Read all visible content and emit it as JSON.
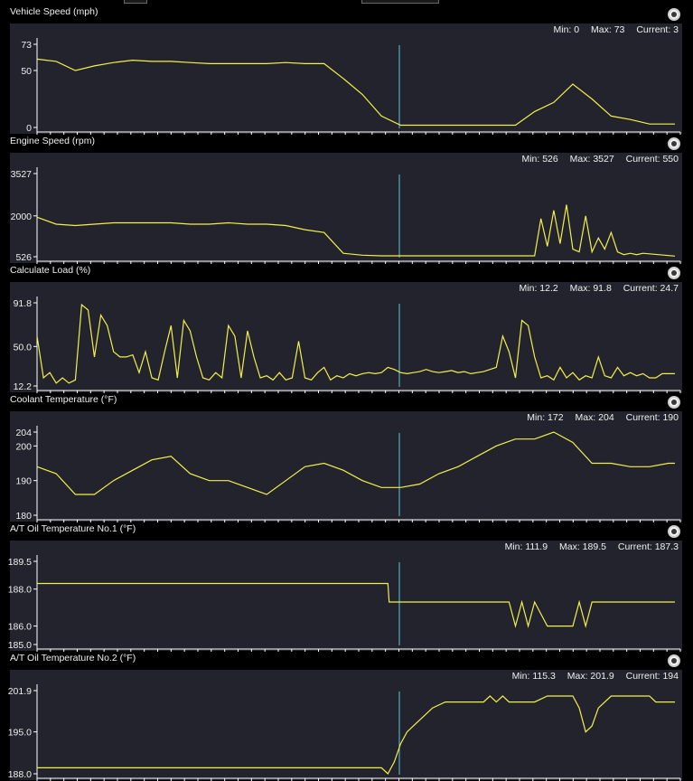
{
  "panels": [
    {
      "title": "Vehicle Speed (mph)",
      "min_label": "Min: 0",
      "max_label": "Max: 73",
      "current_label": "Current: 3",
      "chart_data": {
        "type": "line",
        "ylim": [
          0,
          73
        ],
        "yticks": [
          "73",
          "50",
          "0"
        ],
        "x": [
          0,
          3,
          6,
          9,
          12,
          15,
          18,
          21,
          24,
          27,
          30,
          33,
          36,
          39,
          42,
          45,
          48,
          51,
          54,
          57,
          60,
          63,
          66,
          69,
          72,
          75,
          78,
          81,
          84,
          87,
          90,
          93,
          96,
          100
        ],
        "values": [
          60,
          58,
          50,
          54,
          57,
          59,
          58,
          58,
          57,
          56,
          56,
          56,
          56,
          57,
          56,
          56,
          43,
          29,
          10,
          2,
          2,
          2,
          2,
          2,
          2,
          2,
          14,
          22,
          38,
          25,
          10,
          7,
          3,
          3
        ]
      }
    },
    {
      "title": "Engine Speed (rpm)",
      "min_label": "Min: 526",
      "max_label": "Max: 3527",
      "current_label": "Current: 550",
      "chart_data": {
        "type": "line",
        "ylim": [
          526,
          3527
        ],
        "yticks": [
          "3527",
          "2000",
          "526"
        ],
        "x": [
          0,
          3,
          6,
          9,
          12,
          15,
          18,
          21,
          24,
          27,
          30,
          33,
          36,
          39,
          42,
          45,
          48,
          51,
          54,
          57,
          60,
          63,
          66,
          69,
          72,
          75,
          78,
          79,
          80,
          81,
          82,
          83,
          84,
          85,
          86,
          87,
          88,
          89,
          90,
          91,
          92,
          93,
          94,
          95,
          100
        ],
        "values": [
          1950,
          1700,
          1650,
          1700,
          1750,
          1750,
          1750,
          1750,
          1700,
          1700,
          1750,
          1700,
          1700,
          1650,
          1500,
          1400,
          650,
          580,
          560,
          560,
          560,
          560,
          560,
          560,
          560,
          560,
          560,
          1900,
          900,
          2200,
          1000,
          2400,
          800,
          700,
          2000,
          700,
          1200,
          800,
          1400,
          700,
          600,
          650,
          600,
          650,
          550
        ]
      }
    },
    {
      "title": "Calculate Load (%)",
      "min_label": "Min: 12.2",
      "max_label": "Max: 91.8",
      "current_label": "Current: 24.7",
      "chart_data": {
        "type": "line",
        "ylim": [
          12.2,
          91.8
        ],
        "yticks": [
          "91.8",
          "50.0",
          "12.2"
        ],
        "x": [
          0,
          1,
          2,
          3,
          4,
          5,
          6,
          7,
          8,
          9,
          10,
          11,
          12,
          13,
          14,
          15,
          16,
          17,
          18,
          19,
          20,
          21,
          22,
          23,
          24,
          25,
          26,
          27,
          28,
          29,
          30,
          31,
          32,
          33,
          34,
          35,
          36,
          37,
          38,
          39,
          40,
          41,
          42,
          43,
          44,
          45,
          46,
          47,
          48,
          49,
          50,
          51,
          52,
          53,
          54,
          55,
          56,
          57,
          58,
          59,
          60,
          61,
          62,
          63,
          64,
          65,
          66,
          67,
          68,
          69,
          70,
          71,
          72,
          73,
          74,
          75,
          76,
          77,
          78,
          79,
          80,
          81,
          82,
          83,
          84,
          85,
          86,
          87,
          88,
          89,
          90,
          91,
          92,
          93,
          94,
          95,
          96,
          97,
          98,
          99,
          100
        ],
        "values": [
          60,
          20,
          25,
          15,
          20,
          15,
          18,
          90,
          85,
          40,
          80,
          70,
          45,
          40,
          40,
          42,
          25,
          45,
          20,
          18,
          45,
          70,
          20,
          75,
          65,
          40,
          20,
          18,
          25,
          20,
          70,
          60,
          20,
          65,
          40,
          20,
          22,
          18,
          25,
          18,
          20,
          55,
          20,
          18,
          25,
          30,
          18,
          22,
          20,
          24,
          22,
          24,
          25,
          24,
          25,
          30,
          28,
          25,
          24,
          25,
          26,
          28,
          26,
          25,
          26,
          27,
          25,
          26,
          24,
          25,
          26,
          28,
          30,
          60,
          45,
          20,
          75,
          70,
          40,
          20,
          22,
          18,
          30,
          20,
          25,
          18,
          22,
          20,
          40,
          22,
          20,
          30,
          22,
          25,
          22,
          24,
          20,
          20,
          24,
          24,
          24
        ]
      }
    },
    {
      "title": "Coolant Temperature (°F)",
      "min_label": "Min: 172",
      "max_label": "Max: 204",
      "current_label": "Current: 190",
      "chart_data": {
        "type": "line",
        "ylim": [
          180,
          204
        ],
        "yticks": [
          "204",
          "200",
          "190",
          "180"
        ],
        "x": [
          0,
          3,
          6,
          9,
          12,
          15,
          18,
          21,
          24,
          27,
          30,
          33,
          36,
          39,
          42,
          45,
          48,
          51,
          54,
          57,
          60,
          63,
          66,
          69,
          72,
          75,
          78,
          81,
          84,
          87,
          90,
          93,
          96,
          99,
          100
        ],
        "values": [
          194,
          192,
          186,
          186,
          190,
          193,
          196,
          197,
          192,
          190,
          190,
          188,
          186,
          190,
          194,
          195,
          193,
          190,
          188,
          188,
          189,
          192,
          194,
          197,
          200,
          202,
          202,
          204,
          201,
          195,
          195,
          194,
          194,
          195,
          195
        ]
      }
    },
    {
      "title": "A/T Oil Temperature No.1 (°F)",
      "min_label": "Min: 111.9",
      "max_label": "Max: 189.5",
      "current_label": "Current: 187.3",
      "chart_data": {
        "type": "line",
        "ylim": [
          185.0,
          189.5
        ],
        "yticks": [
          "189.5",
          "188.0",
          "186.0",
          "185.0"
        ],
        "x": [
          0,
          10,
          20,
          30,
          40,
          50,
          55,
          55.2,
          60,
          70,
          74,
          75,
          76,
          77,
          78,
          80,
          82,
          83,
          84,
          85,
          86,
          87,
          88,
          90,
          95,
          100
        ],
        "values": [
          188.3,
          188.3,
          188.3,
          188.3,
          188.3,
          188.3,
          188.3,
          187.3,
          187.3,
          187.3,
          187.3,
          186.0,
          187.3,
          186.0,
          187.3,
          186.0,
          186.0,
          186.0,
          186.0,
          187.3,
          186.0,
          187.3,
          187.3,
          187.3,
          187.3,
          187.3
        ]
      }
    },
    {
      "title": "A/T Oil Temperature No.2 (°F)",
      "min_label": "Min: 115.3",
      "max_label": "Max: 201.9",
      "current_label": "Current: 194",
      "chart_data": {
        "type": "line",
        "ylim": [
          188.0,
          201.9
        ],
        "yticks": [
          "201.9",
          "195.0",
          "188.0"
        ],
        "x": [
          0,
          20,
          40,
          54,
          55,
          56,
          57,
          58,
          59,
          60,
          62,
          64,
          66,
          68,
          70,
          71,
          72,
          73,
          74,
          75,
          78,
          80,
          82,
          84,
          85,
          86,
          87,
          88,
          90,
          92,
          94,
          96,
          97,
          100
        ],
        "values": [
          189,
          189,
          189,
          189,
          188,
          190,
          193,
          195,
          196,
          197,
          199,
          200,
          200,
          200,
          200,
          201,
          200,
          201,
          200,
          200,
          200,
          201,
          201,
          201,
          199,
          195,
          196,
          199,
          201,
          201,
          201,
          201,
          200,
          200
        ]
      }
    }
  ]
}
